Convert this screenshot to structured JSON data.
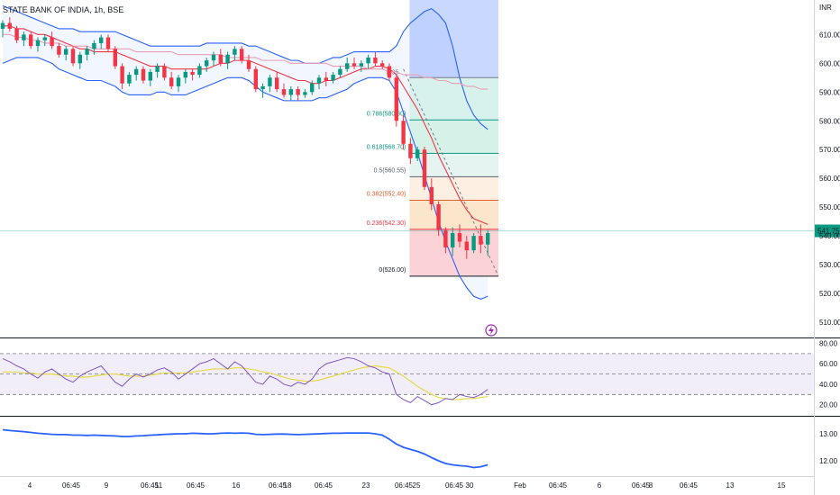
{
  "chart_data": {
    "type": "candlestick",
    "title": "STATE BANK OF INDIA, 1h, BSE",
    "currency": "INR",
    "last_price": "541.75",
    "x_ticks": [
      "4",
      "06:45",
      "9",
      "06:45",
      "11",
      "06:45",
      "16",
      "06:45",
      "18",
      "06:45",
      "23",
      "06:45",
      "25",
      "06:45",
      "30",
      "Feb",
      "06:45",
      "6",
      "06:45",
      "8",
      "06:45",
      "13",
      "15"
    ],
    "price_axis": {
      "ticks": [
        "610.00",
        "600.00",
        "590.00",
        "580.00",
        "570.00",
        "560.00",
        "550.00",
        "540.00",
        "530.00",
        "520.00",
        "510.00"
      ],
      "ylim": [
        505,
        622
      ]
    },
    "rsi_axis": {
      "ticks": [
        "80.00",
        "60.00",
        "40.00",
        "20.00"
      ],
      "ylim": [
        10,
        84
      ]
    },
    "ind_axis": {
      "ticks": [
        "13.00",
        "12.00"
      ],
      "ylim": [
        11.5,
        13.6
      ]
    },
    "fib_levels": [
      {
        "label": "0.786(580.30)",
        "price": 580.3,
        "color": "#089981",
        "fill": "#d7f1ec"
      },
      {
        "label": "0.618(568.70)",
        "price": 568.7,
        "color": "#089981",
        "fill": "#d5f1e8"
      },
      {
        "label": "0.5(560.55)",
        "price": 560.55,
        "color": "#5a6170",
        "fill": "#e6f4f1"
      },
      {
        "label": "0.382(552.40)",
        "price": 552.4,
        "color": "#e65f2b",
        "fill": "#fdf0e3"
      },
      {
        "label": "0.236(542.30)",
        "price": 542.3,
        "color": "#f23645",
        "fill": "#fbe6cc"
      },
      {
        "label": "0(526.00)",
        "price": 526.0,
        "color": "#131722",
        "fill": "#fbd3d6"
      }
    ],
    "fib_top_label": "(595",
    "candles": [
      [
        612,
        615,
        609,
        614
      ],
      [
        614,
        616,
        611,
        612
      ],
      [
        612,
        613,
        607,
        608
      ],
      [
        608,
        611,
        606,
        610
      ],
      [
        610,
        611,
        605,
        606
      ],
      [
        606,
        609,
        604,
        608
      ],
      [
        608,
        610,
        606,
        609
      ],
      [
        609,
        611,
        605,
        606
      ],
      [
        606,
        607,
        602,
        603
      ],
      [
        603,
        606,
        601,
        605
      ],
      [
        605,
        606,
        599,
        600
      ],
      [
        600,
        604,
        598,
        603
      ],
      [
        603,
        606,
        601,
        605
      ],
      [
        605,
        608,
        603,
        607
      ],
      [
        607,
        610,
        605,
        609
      ],
      [
        609,
        610,
        604,
        605
      ],
      [
        605,
        606,
        598,
        599
      ],
      [
        599,
        600,
        591,
        593
      ],
      [
        593,
        597,
        592,
        596
      ],
      [
        596,
        599,
        594,
        598
      ],
      [
        598,
        599,
        593,
        594
      ],
      [
        594,
        598,
        592,
        597
      ],
      [
        597,
        600,
        595,
        599
      ],
      [
        599,
        600,
        594,
        595
      ],
      [
        595,
        597,
        591,
        592
      ],
      [
        592,
        596,
        590,
        595
      ],
      [
        595,
        598,
        593,
        597
      ],
      [
        597,
        598,
        594,
        596
      ],
      [
        596,
        600,
        595,
        599
      ],
      [
        599,
        602,
        597,
        601
      ],
      [
        601,
        604,
        599,
        603
      ],
      [
        603,
        605,
        599,
        600
      ],
      [
        600,
        604,
        598,
        603
      ],
      [
        603,
        606,
        601,
        605
      ],
      [
        605,
        606,
        600,
        601
      ],
      [
        601,
        603,
        597,
        598
      ],
      [
        598,
        599,
        590,
        591
      ],
      [
        591,
        593,
        588,
        592
      ],
      [
        592,
        596,
        590,
        595
      ],
      [
        595,
        597,
        590,
        591
      ],
      [
        591,
        593,
        588,
        589
      ],
      [
        589,
        592,
        587,
        591
      ],
      [
        591,
        592,
        587,
        589
      ],
      [
        589,
        591,
        588,
        590
      ],
      [
        590,
        594,
        589,
        593
      ],
      [
        593,
        596,
        591,
        595
      ],
      [
        595,
        597,
        592,
        594
      ],
      [
        594,
        597,
        593,
        596
      ],
      [
        596,
        599,
        595,
        598
      ],
      [
        598,
        602,
        597,
        600
      ],
      [
        600,
        602,
        598,
        599
      ],
      [
        599,
        601,
        597,
        600
      ],
      [
        600,
        603,
        598,
        602
      ],
      [
        602,
        604,
        599,
        600
      ],
      [
        600,
        601,
        598,
        599
      ],
      [
        599,
        600,
        594,
        595
      ],
      [
        595,
        596,
        578,
        580
      ],
      [
        580,
        582,
        570,
        572
      ],
      [
        572,
        574,
        565,
        567
      ],
      [
        567,
        571,
        566,
        570
      ],
      [
        570,
        571,
        556,
        557
      ],
      [
        557,
        560,
        549,
        551
      ],
      [
        551,
        552,
        540,
        542
      ],
      [
        542,
        543,
        534,
        536
      ],
      [
        536,
        543,
        533,
        541
      ],
      [
        541,
        544,
        536,
        538
      ],
      [
        538,
        540,
        532,
        535
      ],
      [
        535,
        541,
        534,
        540
      ],
      [
        540,
        544,
        534,
        537
      ],
      [
        537,
        542,
        533,
        541
      ]
    ],
    "overlays": [
      {
        "name": "upper band",
        "color": "#2962ff",
        "values": [
          620,
          619,
          618,
          617,
          616,
          615,
          614,
          613,
          612,
          612,
          612,
          611,
          611,
          611,
          611,
          611,
          611,
          610,
          609,
          608,
          607,
          606,
          606,
          606,
          606,
          606,
          606,
          606,
          606,
          607,
          607,
          607,
          607,
          607,
          607,
          606,
          606,
          605,
          604,
          603,
          602,
          601,
          601,
          600,
          600,
          600,
          601,
          602,
          602,
          603,
          604,
          604,
          604,
          604,
          604,
          604,
          606,
          611,
          614,
          616,
          618,
          619,
          617,
          614,
          606,
          595,
          587,
          582,
          579,
          577
        ]
      },
      {
        "name": "lower band",
        "color": "#2962ff",
        "values": [
          600,
          601,
          602,
          602,
          602,
          602,
          601,
          600,
          598,
          597,
          596,
          595,
          594,
          594,
          594,
          593,
          592,
          590,
          589,
          589,
          589,
          589,
          590,
          590,
          589,
          589,
          589,
          590,
          591,
          592,
          593,
          594,
          595,
          595,
          595,
          594,
          592,
          590,
          589,
          588,
          587,
          587,
          587,
          587,
          587,
          588,
          588,
          589,
          590,
          591,
          593,
          594,
          595,
          595,
          595,
          594,
          590,
          583,
          576,
          569,
          561,
          553,
          545,
          538,
          532,
          526,
          522,
          519,
          518,
          519
        ]
      },
      {
        "name": "fast average",
        "color": "#f23645",
        "values": [
          613,
          613,
          612,
          612,
          611,
          610,
          610,
          609,
          608,
          607,
          606,
          605,
          605,
          604,
          604,
          604,
          604,
          603,
          602,
          601,
          600,
          599,
          599,
          599,
          598,
          598,
          598,
          598,
          598,
          598,
          599,
          600,
          600,
          601,
          601,
          601,
          600,
          599,
          598,
          597,
          596,
          595,
          594,
          594,
          593,
          593,
          594,
          594,
          595,
          596,
          597,
          598,
          598,
          599,
          599,
          598,
          596,
          592,
          588,
          584,
          579,
          574,
          568,
          563,
          558,
          553,
          549,
          546,
          545,
          544
        ]
      },
      {
        "name": "slow average",
        "color": "#e9a0b4",
        "values": [
          610,
          610,
          609,
          609,
          608,
          608,
          607,
          607,
          607,
          606,
          606,
          606,
          606,
          605,
          605,
          605,
          605,
          605,
          605,
          604,
          604,
          604,
          604,
          604,
          604,
          603,
          603,
          603,
          603,
          603,
          603,
          603,
          602,
          602,
          602,
          602,
          602,
          601,
          601,
          601,
          601,
          600,
          600,
          600,
          600,
          600,
          600,
          599,
          599,
          599,
          599,
          599,
          598,
          598,
          598,
          597,
          597,
          596,
          596,
          596,
          595,
          595,
          594,
          594,
          593,
          593,
          592,
          592,
          591,
          591
        ]
      }
    ],
    "rsi": [
      65,
      62,
      58,
      55,
      50,
      46,
      52,
      55,
      50,
      45,
      42,
      48,
      52,
      55,
      58,
      50,
      42,
      38,
      45,
      50,
      47,
      50,
      54,
      56,
      52,
      45,
      50,
      55,
      60,
      62,
      65,
      60,
      55,
      62,
      58,
      50,
      42,
      40,
      48,
      45,
      40,
      38,
      42,
      40,
      45,
      55,
      60,
      62,
      64,
      66,
      65,
      62,
      58,
      56,
      52,
      50,
      30,
      25,
      22,
      28,
      24,
      20,
      22,
      26,
      25,
      30,
      28,
      27,
      30,
      35
    ],
    "rsi_ma": [
      52,
      52,
      52,
      51,
      51,
      50,
      50,
      50,
      49,
      48,
      48,
      47,
      47,
      48,
      49,
      50,
      50,
      49,
      48,
      48,
      48,
      49,
      50,
      51,
      51,
      51,
      51,
      52,
      53,
      54,
      55,
      55,
      55,
      56,
      56,
      55,
      54,
      52,
      51,
      49,
      47,
      45,
      44,
      43,
      43,
      44,
      46,
      48,
      50,
      52,
      54,
      56,
      57,
      58,
      57,
      56,
      52,
      48,
      43,
      38,
      34,
      30,
      27,
      26,
      25,
      25,
      26,
      26,
      27,
      28
    ],
    "ind": [
      13.15,
      13.12,
      13.1,
      13.08,
      13.05,
      13.02,
      13.0,
      12.98,
      12.97,
      12.97,
      12.95,
      12.95,
      12.94,
      12.95,
      12.94,
      12.93,
      12.92,
      12.9,
      12.9,
      12.92,
      12.93,
      12.95,
      12.96,
      12.98,
      12.99,
      13.0,
      13.0,
      13.02,
      13.01,
      13.0,
      13.0,
      13.02,
      13.03,
      13.02,
      13.03,
      13.02,
      12.98,
      12.97,
      12.98,
      12.99,
      12.99,
      12.98,
      12.97,
      12.98,
      12.99,
      13.0,
      13.01,
      13.02,
      13.02,
      13.03,
      13.03,
      13.03,
      13.03,
      13.0,
      12.95,
      12.8,
      12.62,
      12.5,
      12.42,
      12.35,
      12.25,
      12.12,
      12.0,
      11.9,
      11.85,
      11.82,
      11.8,
      11.75,
      11.78,
      11.85
    ]
  }
}
